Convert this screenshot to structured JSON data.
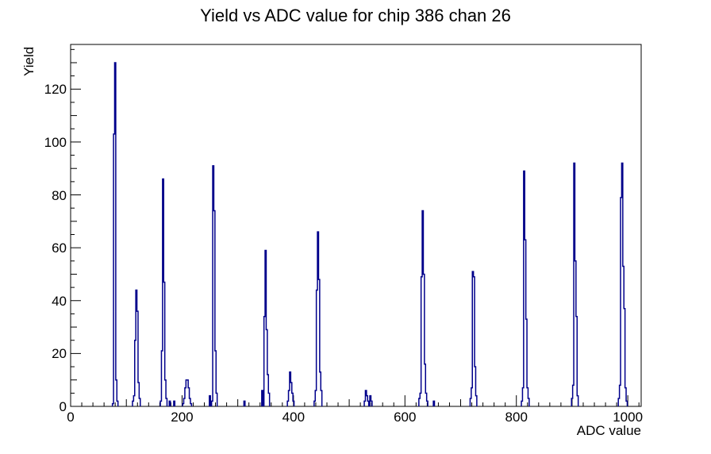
{
  "title": "Yield vs ADC value for chip 386 chan 26",
  "chart_data": {
    "type": "bar",
    "subtype": "step-histogram",
    "title": "Yield vs ADC value for chip 386 chan 26",
    "xlabel": "ADC value",
    "ylabel": "Yield",
    "xlim": [
      0,
      1024
    ],
    "ylim": [
      0,
      136.9
    ],
    "grid": false,
    "legend": "none",
    "line_color": "#00008b",
    "frame_color": "#000000",
    "background_color": "#ffffff",
    "x_ticks": {
      "labels": [
        0,
        200,
        400,
        600,
        800,
        1000
      ],
      "major_step": 200,
      "medium_step": 100,
      "minor_step": 20
    },
    "y_ticks": {
      "labels": [
        0,
        20,
        40,
        60,
        80,
        100,
        120
      ],
      "major_step": 20,
      "medium_step": 10,
      "minor_step": 5
    },
    "bin_width": 2,
    "bins": [
      [
        76,
        1
      ],
      [
        78,
        103
      ],
      [
        80,
        130
      ],
      [
        82,
        10
      ],
      [
        84,
        2
      ],
      [
        112,
        2
      ],
      [
        114,
        4
      ],
      [
        116,
        25
      ],
      [
        118,
        44
      ],
      [
        120,
        36
      ],
      [
        122,
        9
      ],
      [
        124,
        3
      ],
      [
        162,
        2
      ],
      [
        164,
        21
      ],
      [
        166,
        86
      ],
      [
        168,
        47
      ],
      [
        170,
        10
      ],
      [
        172,
        3
      ],
      [
        178,
        2
      ],
      [
        186,
        2
      ],
      [
        202,
        1
      ],
      [
        204,
        3
      ],
      [
        206,
        7
      ],
      [
        208,
        10
      ],
      [
        210,
        10
      ],
      [
        212,
        7
      ],
      [
        214,
        3
      ],
      [
        216,
        1
      ],
      [
        250,
        4
      ],
      [
        254,
        2
      ],
      [
        256,
        91
      ],
      [
        258,
        74
      ],
      [
        260,
        21
      ],
      [
        262,
        5
      ],
      [
        312,
        2
      ],
      [
        344,
        6
      ],
      [
        348,
        34
      ],
      [
        350,
        59
      ],
      [
        352,
        29
      ],
      [
        354,
        12
      ],
      [
        356,
        5
      ],
      [
        390,
        2
      ],
      [
        392,
        6
      ],
      [
        394,
        13
      ],
      [
        396,
        9
      ],
      [
        398,
        5
      ],
      [
        400,
        2
      ],
      [
        438,
        2
      ],
      [
        440,
        6
      ],
      [
        442,
        44
      ],
      [
        444,
        66
      ],
      [
        446,
        48
      ],
      [
        448,
        13
      ],
      [
        450,
        6
      ],
      [
        528,
        2
      ],
      [
        530,
        6
      ],
      [
        532,
        4
      ],
      [
        534,
        2
      ],
      [
        538,
        4
      ],
      [
        540,
        2
      ],
      [
        626,
        3
      ],
      [
        628,
        5
      ],
      [
        630,
        49
      ],
      [
        632,
        74
      ],
      [
        634,
        50
      ],
      [
        636,
        16
      ],
      [
        638,
        5
      ],
      [
        640,
        2
      ],
      [
        652,
        2
      ],
      [
        718,
        3
      ],
      [
        720,
        7
      ],
      [
        722,
        51
      ],
      [
        724,
        49
      ],
      [
        726,
        15
      ],
      [
        728,
        4
      ],
      [
        810,
        2
      ],
      [
        812,
        7
      ],
      [
        814,
        89
      ],
      [
        816,
        63
      ],
      [
        818,
        33
      ],
      [
        820,
        7
      ],
      [
        822,
        3
      ],
      [
        900,
        3
      ],
      [
        902,
        8
      ],
      [
        904,
        92
      ],
      [
        906,
        55
      ],
      [
        908,
        34
      ],
      [
        910,
        4
      ],
      [
        984,
        3
      ],
      [
        986,
        8
      ],
      [
        988,
        79
      ],
      [
        990,
        92
      ],
      [
        992,
        53
      ],
      [
        994,
        37
      ],
      [
        996,
        7
      ],
      [
        998,
        2
      ]
    ]
  }
}
